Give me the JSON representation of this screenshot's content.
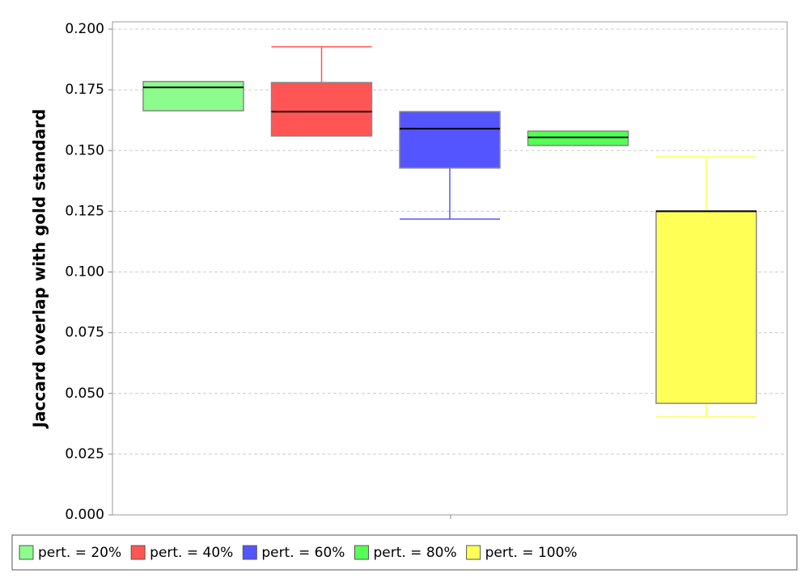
{
  "chart_data": {
    "type": "box",
    "y_label": "Jaccard overlap with gold standard",
    "ylim": [
      0,
      0.2
    ],
    "yticks": [
      {
        "value": 0,
        "label": "0.000"
      },
      0.025,
      {
        "value": 0.05,
        "label": "0.050"
      },
      0.075,
      {
        "value": 0.1,
        "label": "0.100"
      },
      0.125,
      {
        "value": 0.15,
        "label": "0.150"
      },
      0.175,
      {
        "value": 0.2,
        "label": "0.200"
      }
    ],
    "grid": true,
    "legend": "bottom",
    "series": [
      {
        "name": "pert. = 20%",
        "color": "#8cfc8c",
        "min": 0.1664,
        "q1": 0.1664,
        "median": 0.176,
        "q3": 0.1784,
        "max": 0.1784
      },
      {
        "name": "pert. = 40%",
        "color": "#ff5555",
        "min": 0.156,
        "q1": 0.156,
        "median": 0.166,
        "q3": 0.178,
        "max": 0.1927
      },
      {
        "name": "pert. = 60%",
        "color": "#5555ff",
        "min": 0.1218,
        "q1": 0.1428,
        "median": 0.159,
        "q3": 0.166,
        "max": 0.166
      },
      {
        "name": "pert. = 80%",
        "color": "#55ff55",
        "min": 0.1521,
        "q1": 0.1521,
        "median": 0.1554,
        "q3": 0.158,
        "max": 0.158
      },
      {
        "name": "pert. = 100%",
        "color": "#ffff55",
        "min": 0.0403,
        "q1": 0.0459,
        "median": 0.125,
        "q3": 0.1251,
        "max": 0.1474
      }
    ]
  }
}
